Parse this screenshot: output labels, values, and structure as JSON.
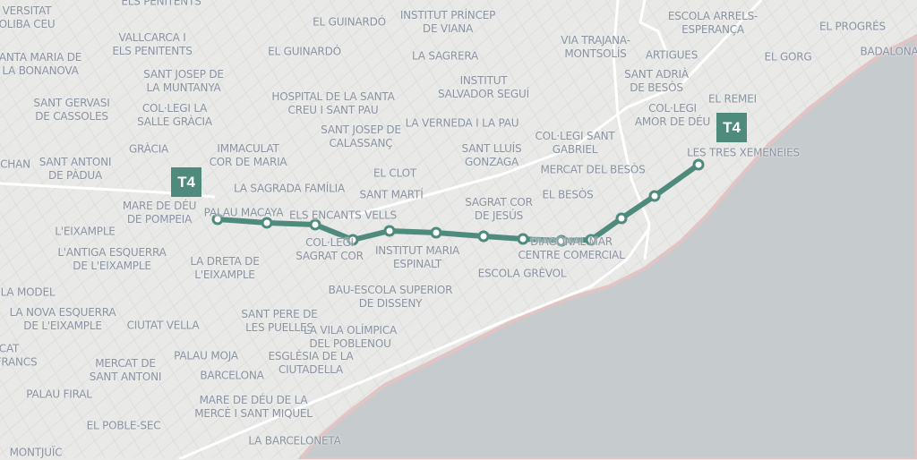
{
  "map": {
    "colors": {
      "land": "#e9e9e8",
      "sea": "#c6cbce",
      "coast": "#e3c4c4",
      "road": "#ffffff",
      "line": "#4e8b7c",
      "label": "#8a93a0"
    },
    "line": {
      "name": "T4",
      "stop_count": 13
    },
    "labels": [
      "ELS PENITENTS",
      "VERSITAT\nOLIBA CEU",
      "VALLCARCA I\nELS PENITENTS",
      "ANTA MARIA DE\nLA BONANOVA",
      "EL GUINARDÓ",
      "EL GUINARDÓ",
      "INSTITUT PRÍNCEP\nDE VIANA",
      "LA SAGRERA",
      "SANT JOSEP DE\nLA MUNTANYA",
      "SANT GERVASI\nDE CASSOLES",
      "COL·LEGI LA\nSALLE GRÀCIA",
      "HOSPITAL DE LA SANTA\nCREU I SANT PAU",
      "INSTITUT\nSALVADOR SEGUÍ",
      "LA VERNEDA I LA PAU",
      "SANT JOSEP DE\nCALASSANÇ",
      "GRÀCIA",
      "IMMACULAT\nCOR DE MARIA",
      "CHAN",
      "SANT ANTONI\nDE PÀDUA",
      "EL CLOT",
      "SANT LLUÍS\nGONZAGA",
      "LA SAGRADA FAMÍLIA",
      "SANT MARTÍ",
      "MARE DE DÉU\nDE POMPEIA",
      "PALAU MACAYA",
      "ELS ENCANTS VELLS",
      "SAGRAT COR\nDE JESÚS",
      "L'EIXAMPLE",
      "COL·LEGI\nSAGRAT COR",
      "INSTITUT MARIA\nESPINALT",
      "DIAGONAL MAR\nCENTRE COMERCIAL",
      "L'ANTIGA ESQUERRA\nDE L'EIXAMPLE",
      "LA DRETA DE\nL'EIXAMPLE",
      "ESCOLA GRÈVOL",
      "LA MODEL",
      "BAU-ESCOLA SUPERIOR\nDE DISSENY",
      "LA NOVA ESQUERRA\nDE L'EIXAMPLE",
      "CIUTAT VELLA",
      "SANT PERE DE\nLES PUELLES",
      "LA VILA OLÍMPICA\nDEL POBLENOU",
      "CAT",
      "FRANCS",
      "PALAU MOJA",
      "MERCAT DE\nSANT ANTONI",
      "ESGLÉSIA DE LA\nCIUTADELLA",
      "BARCELONA",
      "PALAU FIRAL",
      "MARE DE DÉU DE LA\nMERCÈ I SANT MIQUEL",
      "EL POBLE-SEC",
      "LA BARCELONETA",
      "MONTJUÏC",
      "ESCOLA ARRELS-\nESPERANÇA",
      "EL PROGRÉS",
      "VIA TRAJANA-\nMONTSOLÍS",
      "ARTIGUES",
      "EL GORG",
      "BADALONA",
      "SANT ADRIÀ\nDE BESÒS",
      "EL REMEI",
      "COL·LEGI\nAMOR DE DÉU",
      "COL·LEGI SANT\nGABRIEL",
      "MERCAT DEL BESÒS",
      "LES TRES XEMENEIES",
      "EL BESÒS"
    ]
  }
}
